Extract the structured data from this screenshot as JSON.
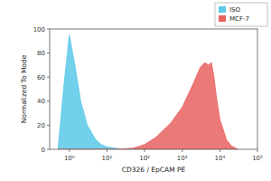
{
  "chart_data": {
    "type": "area",
    "log": "x",
    "x_label": "CD326 / EpCAM PE",
    "y_label": "Normalized To Mode",
    "x": [
      0.5,
      0.7,
      1,
      1.4,
      2,
      3,
      5,
      7,
      10,
      20,
      50,
      100,
      200,
      500,
      1000,
      2000,
      3000,
      4000,
      5000,
      6000,
      7000,
      8000,
      10000,
      15000,
      20000,
      30000
    ],
    "series": [
      {
        "name": "ISO",
        "color": "#5bc8e8",
        "values": [
          0,
          50,
          95,
          70,
          40,
          20,
          8,
          4,
          2,
          0.5,
          0,
          0,
          0,
          0,
          0,
          0,
          0,
          0,
          0,
          0,
          0,
          0,
          0,
          0,
          0,
          0
        ]
      },
      {
        "name": "MCF-7",
        "color": "#e8625f",
        "values": [
          0,
          0,
          0,
          0,
          0,
          0,
          0,
          0,
          0,
          0,
          1,
          4,
          10,
          22,
          35,
          55,
          68,
          72,
          70,
          72,
          60,
          45,
          25,
          8,
          3,
          0
        ]
      }
    ],
    "xlim": [
      0.3,
      100000
    ],
    "xticks": [
      {
        "value": 1,
        "label": "10⁰"
      },
      {
        "value": 10,
        "label": "10¹"
      },
      {
        "value": 100,
        "label": "10²"
      },
      {
        "value": 1000,
        "label": "10³"
      },
      {
        "value": 10000,
        "label": "10⁴"
      },
      {
        "value": 100000,
        "label": "10⁵"
      }
    ],
    "ylim": [
      0,
      100
    ],
    "yticks": [
      0,
      20,
      40,
      60,
      80,
      100
    ],
    "legend": "top-right"
  }
}
